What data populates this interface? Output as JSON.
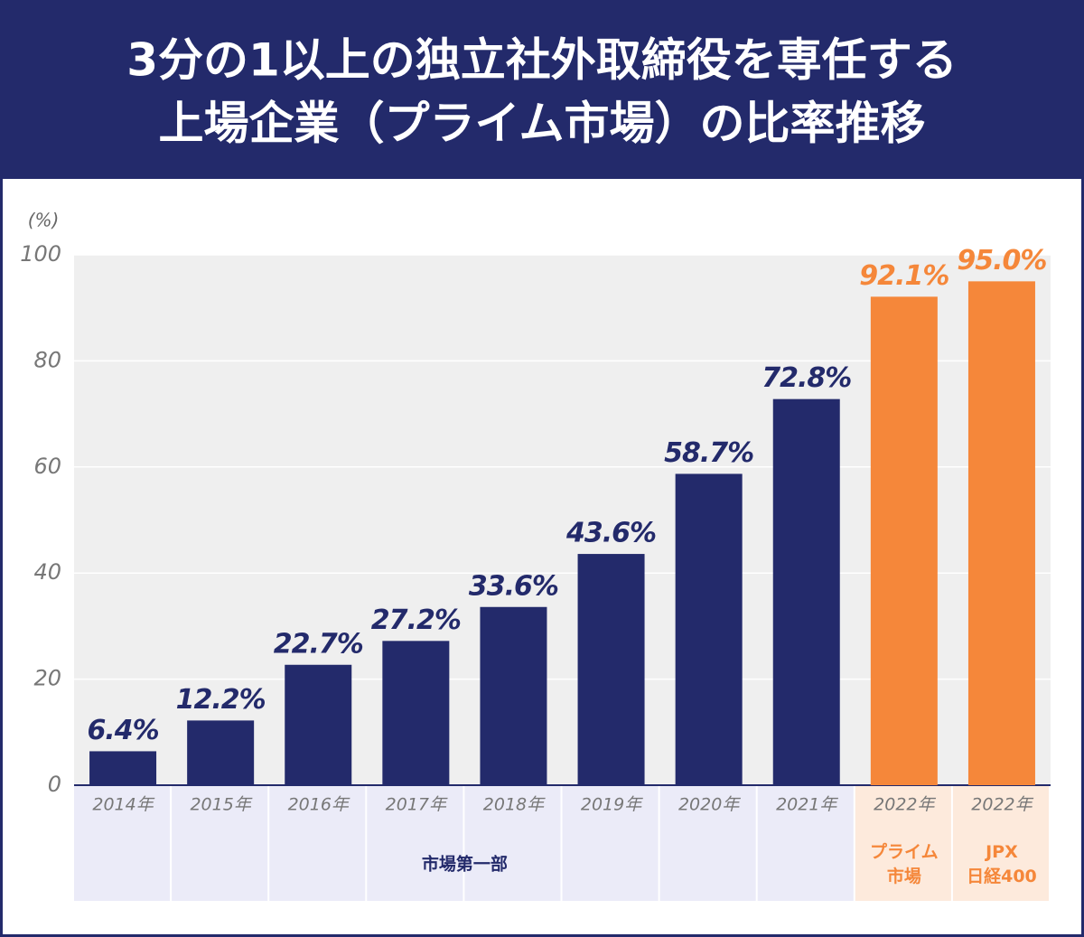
{
  "chart_data": {
    "type": "bar",
    "title": [
      "3分の1以上の独立社外取締役を専任する",
      "上場企業（プライム市場）の比率推移"
    ],
    "y_unit": "(%)",
    "categories": [
      "2014年",
      "2015年",
      "2016年",
      "2017年",
      "2018年",
      "2019年",
      "2020年",
      "2021年",
      "2022年",
      "2022年"
    ],
    "values": [
      6.4,
      12.2,
      22.7,
      27.2,
      33.6,
      43.6,
      58.7,
      72.8,
      92.1,
      95.0
    ],
    "value_labels": [
      "6.4%",
      "12.2%",
      "22.7%",
      "27.2%",
      "33.6%",
      "43.6%",
      "58.7%",
      "72.8%",
      "92.1%",
      "95.0%"
    ],
    "colors": [
      "#232a6b",
      "#232a6b",
      "#232a6b",
      "#232a6b",
      "#232a6b",
      "#232a6b",
      "#232a6b",
      "#232a6b",
      "#f5873a",
      "#f5873a"
    ],
    "group_labels": [
      [
        "市場第一部"
      ],
      [
        "プライム",
        "市場"
      ],
      [
        "JPX",
        "日経400"
      ]
    ],
    "ylim": [
      0,
      100
    ],
    "yticks": [
      0,
      20,
      40,
      60,
      80,
      100
    ],
    "grid": true
  }
}
